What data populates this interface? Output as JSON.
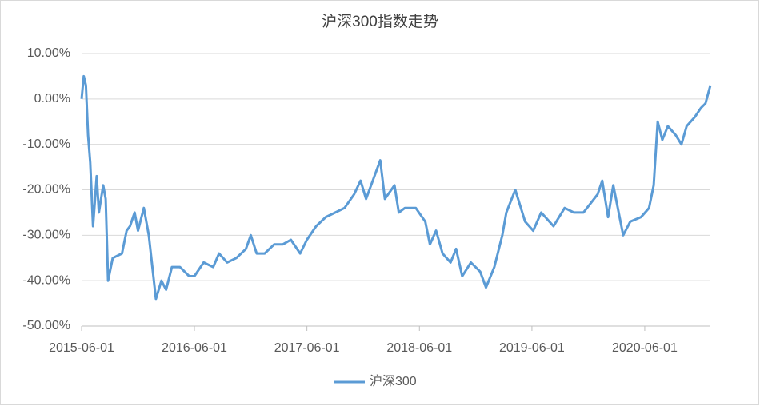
{
  "chart_data": {
    "type": "line",
    "title": "沪深300指数走势",
    "x": [
      "2015-06-01",
      "2015-06-08",
      "2015-06-15",
      "2015-06-22",
      "2015-06-29",
      "2015-07-08",
      "2015-07-20",
      "2015-07-27",
      "2015-08-10",
      "2015-08-18",
      "2015-08-26",
      "2015-09-10",
      "2015-10-10",
      "2015-10-25",
      "2015-11-05",
      "2015-11-20",
      "2015-12-01",
      "2015-12-20",
      "2016-01-05",
      "2016-01-15",
      "2016-01-28",
      "2016-02-15",
      "2016-03-01",
      "2016-03-20",
      "2016-04-15",
      "2016-05-15",
      "2016-06-01",
      "2016-07-01",
      "2016-08-01",
      "2016-08-20",
      "2016-09-15",
      "2016-10-15",
      "2016-11-15",
      "2016-12-01",
      "2016-12-20",
      "2017-01-15",
      "2017-02-15",
      "2017-03-15",
      "2017-04-10",
      "2017-05-10",
      "2017-06-01",
      "2017-07-01",
      "2017-08-01",
      "2017-09-01",
      "2017-10-01",
      "2017-11-01",
      "2017-11-22",
      "2017-12-10",
      "2018-01-25",
      "2018-02-09",
      "2018-03-12",
      "2018-03-26",
      "2018-04-15",
      "2018-05-20",
      "2018-06-20",
      "2018-07-05",
      "2018-07-25",
      "2018-08-15",
      "2018-09-10",
      "2018-09-28",
      "2018-10-18",
      "2018-11-15",
      "2018-12-15",
      "2019-01-03",
      "2019-01-30",
      "2019-02-25",
      "2019-03-10",
      "2019-04-08",
      "2019-05-10",
      "2019-06-05",
      "2019-07-01",
      "2019-08-10",
      "2019-09-15",
      "2019-10-15",
      "2019-11-15",
      "2019-12-31",
      "2020-01-15",
      "2020-02-03",
      "2020-02-20",
      "2020-03-23",
      "2020-04-15",
      "2020-05-20",
      "2020-06-15",
      "2020-06-30",
      "2020-07-13",
      "2020-07-28",
      "2020-08-15",
      "2020-09-10",
      "2020-09-28",
      "2020-10-15",
      "2020-11-10",
      "2020-11-30",
      "2020-12-15",
      "2020-12-31"
    ],
    "series": [
      {
        "name": "沪深300",
        "color": "#5b9bd5",
        "values": [
          0,
          5,
          3,
          -8,
          -14,
          -28,
          -17,
          -25,
          -19,
          -22,
          -40,
          -35,
          -34,
          -29,
          -28,
          -25,
          -29,
          -24,
          -30,
          -36,
          -44,
          -40,
          -42,
          -37,
          -37,
          -39,
          -39,
          -36,
          -37,
          -34,
          -36,
          -35,
          -33,
          -30,
          -34,
          -34,
          -32,
          -32,
          -31,
          -34,
          -31,
          -28,
          -26,
          -25,
          -24,
          -21,
          -18,
          -22,
          -13.5,
          -22,
          -19,
          -25,
          -24,
          -24,
          -27,
          -32,
          -29,
          -34,
          -36,
          -33,
          -39,
          -36,
          -38,
          -41.5,
          -37,
          -30,
          -25,
          -20,
          -27,
          -29,
          -25,
          -28,
          -24,
          -25,
          -25,
          -21,
          -18,
          -26,
          -19,
          -30,
          -27,
          -26,
          -24,
          -19,
          -5,
          -9,
          -6,
          -8,
          -10,
          -6,
          -4,
          -2,
          -1,
          3
        ]
      }
    ],
    "xlim": [
      "2015-06-01",
      "2020-12-31"
    ],
    "xticks": [
      "2015-06-01",
      "2016-06-01",
      "2017-06-01",
      "2018-06-01",
      "2019-06-01",
      "2020-06-01"
    ],
    "ylim": [
      -50,
      10
    ],
    "yticks": [
      {
        "value": -50,
        "label": "-50.00%"
      },
      {
        "value": -40,
        "label": "-40.00%"
      },
      {
        "value": -30,
        "label": "-30.00%"
      },
      {
        "value": -20,
        "label": "-20.00%"
      },
      {
        "value": -10,
        "label": "-10.00%"
      },
      {
        "value": 0,
        "label": "0.00%"
      },
      {
        "value": 10,
        "label": "10.00%"
      }
    ],
    "grid": true,
    "legend": "bottom"
  }
}
